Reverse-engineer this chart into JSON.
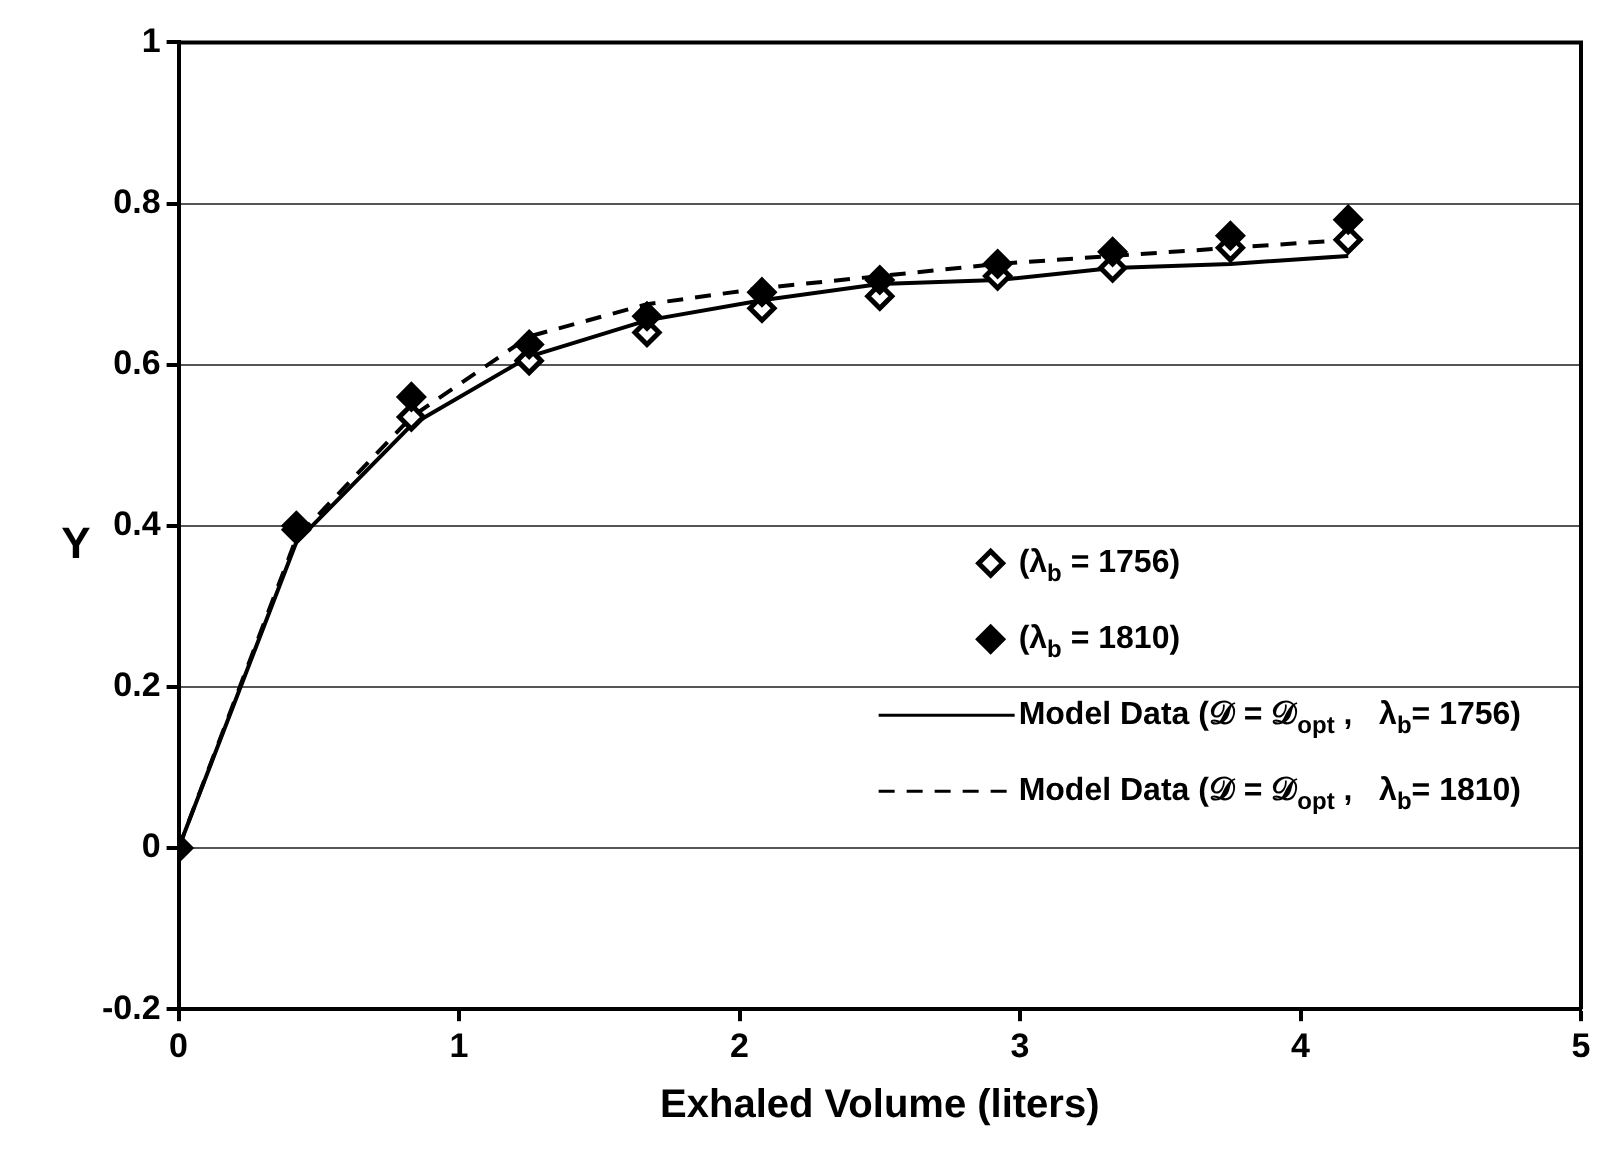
{
  "chart_data": {
    "type": "scatter",
    "xlabel": "Exhaled Volume (liters)",
    "ylabel": "Y",
    "x": [
      0,
      0.42,
      0.83,
      1.25,
      1.67,
      2.08,
      2.5,
      2.92,
      3.33,
      3.75,
      4.17
    ],
    "xlim": [
      0,
      5
    ],
    "xticks": [
      0,
      1,
      2,
      3,
      4,
      5
    ],
    "ylim": [
      -0.2,
      1
    ],
    "yticks": [
      -0.2,
      0,
      0.2,
      0.4,
      0.6,
      0.8,
      1
    ],
    "grid": "y",
    "legend": "bottom right",
    "series": [
      {
        "name": "(λ$_{b}$ = 1756)",
        "marker": "diamond",
        "color": "#000000",
        "values": [
          null,
          0.395,
          0.535,
          0.605,
          0.64,
          0.67,
          0.685,
          0.71,
          0.72,
          0.745,
          0.755
        ]
      },
      {
        "name": "(λ$_{b}$ = 1810)",
        "marker": "diamond",
        "color": "#000000",
        "values": [
          0,
          0.4,
          0.56,
          0.625,
          0.66,
          0.69,
          0.705,
          0.725,
          0.74,
          0.76,
          0.78
        ]
      },
      {
        "name": "Model Data (𝒟 = 𝒟$_{opt}$ ,   λ$_{b}$= 1756)",
        "type": "line",
        "line_style": "solid",
        "color": "#000000",
        "values": [
          0,
          0.38,
          0.525,
          0.61,
          0.655,
          0.68,
          0.7,
          0.705,
          0.72,
          0.725,
          0.735
        ]
      },
      {
        "name": "Model Data (𝒟 = 𝒟$_{opt}$ ,   λ$_{b}$= 1810)",
        "type": "line",
        "line_style": "dashed",
        "color": "#000000",
        "values": [
          0,
          0.385,
          0.535,
          0.635,
          0.675,
          0.695,
          0.71,
          0.725,
          0.735,
          0.745,
          0.755
        ]
      }
    ]
  }
}
